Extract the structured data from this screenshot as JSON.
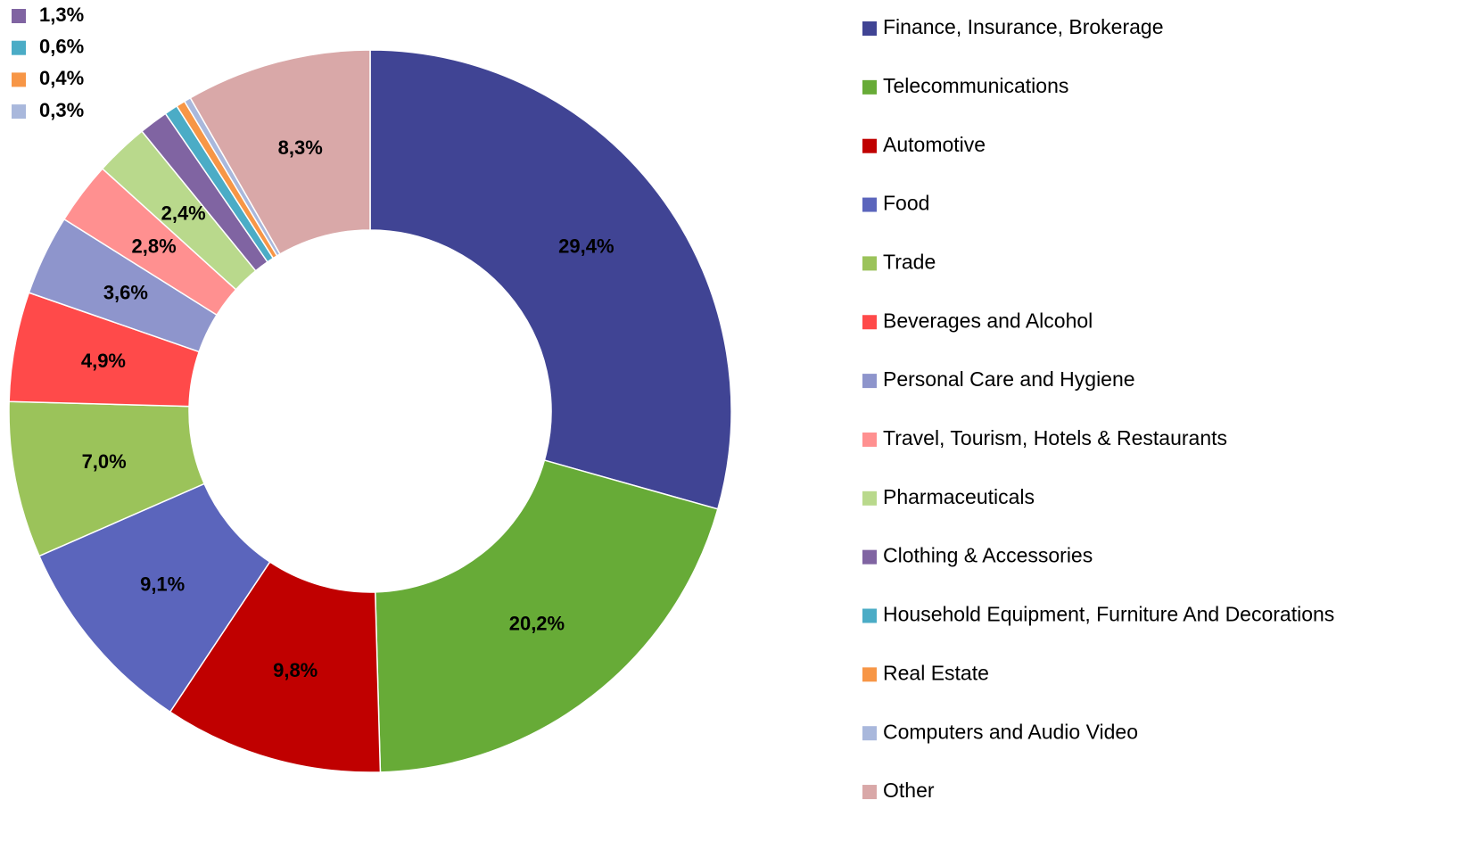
{
  "chart_data": {
    "type": "pie",
    "categories": [
      "Finance, Insurance, Brokerage",
      "Telecommunications",
      "Automotive",
      "Food",
      "Trade",
      "Beverages and Alcohol",
      "Personal Care and Hygiene",
      "Travel, Tourism, Hotels & Restaurants",
      "Pharmaceuticals",
      "Clothing & Accessories",
      "Household Equipment, Furniture And Decorations",
      "Real Estate",
      "Computers and Audio Video",
      "Other"
    ],
    "values": [
      29.4,
      20.2,
      9.8,
      9.1,
      7.0,
      4.9,
      3.6,
      2.8,
      2.4,
      1.3,
      0.6,
      0.4,
      0.3,
      8.3
    ],
    "value_labels": [
      "29,4%",
      "20,2%",
      "9,8%",
      "9,1%",
      "7,0%",
      "4,9%",
      "3,6%",
      "2,8%",
      "2,4%",
      "1,3%",
      "0,6%",
      "0,4%",
      "0,3%",
      "8,3%"
    ],
    "colors": [
      "#404494",
      "#67ab37",
      "#c00000",
      "#5b65bc",
      "#9bc35a",
      "#ff4a4a",
      "#8e95cc",
      "#ff9090",
      "#b9d98c",
      "#8064a2",
      "#4bacc6",
      "#f79646",
      "#a9b8dc",
      "#d9a8a8"
    ],
    "donut": true,
    "legend": "right"
  }
}
